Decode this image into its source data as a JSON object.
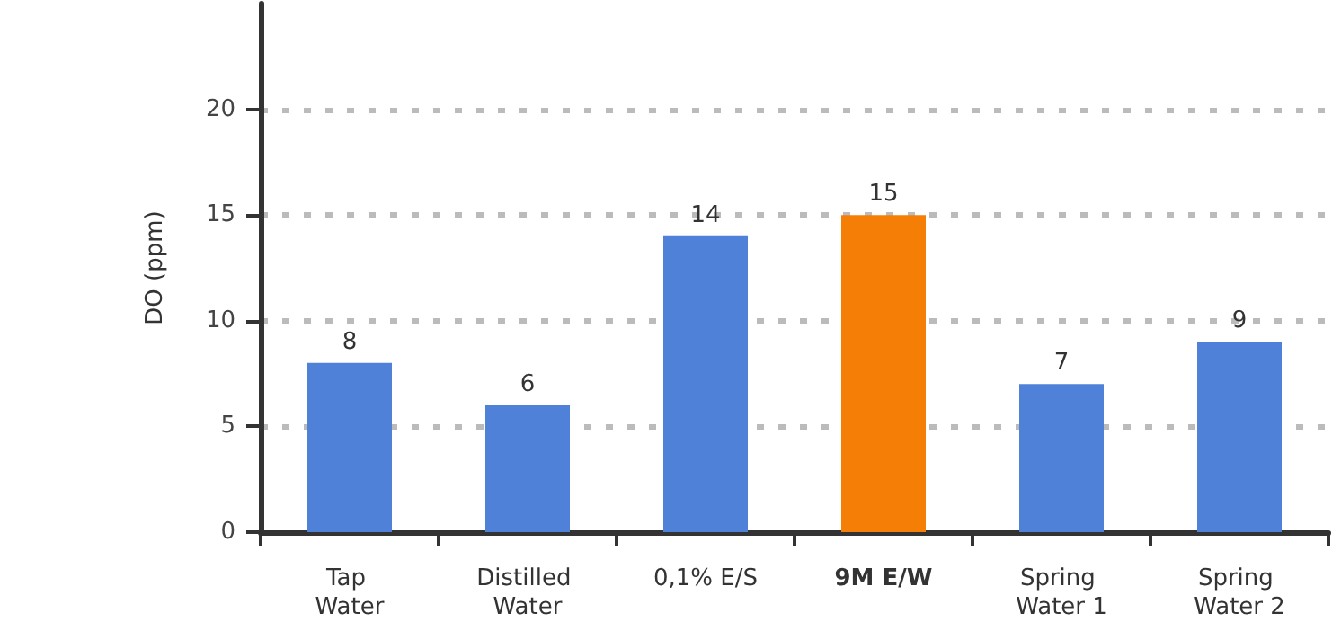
{
  "chart_data": {
    "type": "bar",
    "ylabel": "DO (ppm)",
    "categories": [
      "Tap Water",
      "Distilled Water",
      "0,1% E/S",
      "9M E/W",
      "Spring Water 1",
      "Spring Water 2"
    ],
    "values": [
      8,
      6,
      14,
      15,
      7,
      9
    ],
    "colors": [
      "#4f81d8",
      "#4f81d8",
      "#4f81d8",
      "#f57f06",
      "#4f81d8",
      "#4f81d8"
    ],
    "ylim": [
      0,
      25
    ],
    "yticks": [
      0,
      5,
      10,
      15,
      20
    ],
    "grid": "y",
    "data_labels": true
  }
}
